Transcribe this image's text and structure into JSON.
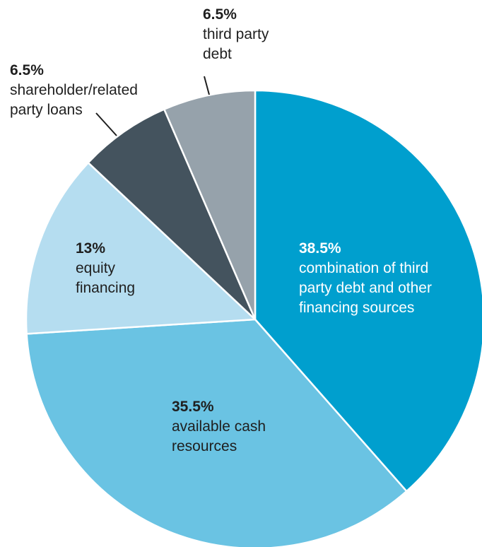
{
  "chart_data": {
    "type": "pie",
    "title": "",
    "slices": [
      {
        "value": 38.5,
        "pct_label": "38.5%",
        "lines": [
          "combination of third",
          "party debt and other",
          "financing sources"
        ],
        "color": "#009fce",
        "label_color": "#ffffff"
      },
      {
        "value": 35.5,
        "pct_label": "35.5%",
        "lines": [
          "available cash",
          "resources"
        ],
        "color": "#6ac3e3",
        "label_color": "#1f1f1f"
      },
      {
        "value": 13,
        "pct_label": "13%",
        "lines": [
          "equity",
          "financing"
        ],
        "color": "#b5ddf0",
        "label_color": "#1f1f1f"
      },
      {
        "value": 6.5,
        "pct_label": "6.5%",
        "lines": [
          "shareholder/related",
          "party loans"
        ],
        "color": "#44535e",
        "label_color": "#1f1f1f"
      },
      {
        "value": 6.5,
        "pct_label": "6.5%",
        "lines": [
          "third party",
          "debt"
        ],
        "color": "#96a2ab",
        "label_color": "#1f1f1f"
      }
    ]
  }
}
